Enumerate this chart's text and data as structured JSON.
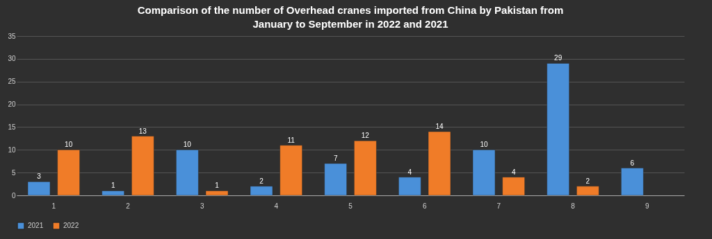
{
  "chart_data": {
    "type": "bar",
    "title": "Comparison of the number of Overhead cranes imported from China by Pakistan from January to September in 2022 and 2021",
    "categories": [
      "1",
      "2",
      "3",
      "4",
      "5",
      "6",
      "7",
      "8",
      "9"
    ],
    "series": [
      {
        "name": "2021",
        "color": "#4a90d9",
        "values": [
          3,
          1,
          10,
          2,
          7,
          4,
          10,
          29,
          6
        ]
      },
      {
        "name": "2022",
        "color": "#f07c28",
        "values": [
          10,
          13,
          1,
          11,
          12,
          14,
          4,
          2,
          null
        ]
      }
    ],
    "ylim": [
      0,
      35
    ],
    "yticks": [
      0,
      5,
      10,
      15,
      20,
      25,
      30,
      35
    ],
    "grid": "y",
    "legend": "bottom",
    "data_labels": true
  }
}
